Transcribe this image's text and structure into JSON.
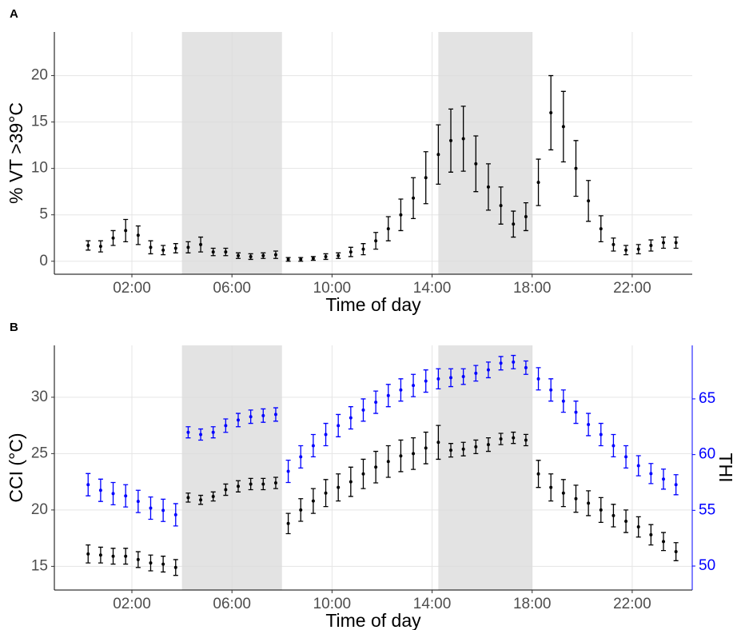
{
  "chart_data": [
    {
      "type": "scatter",
      "label": "A",
      "x_label": "Time of day",
      "y_label": "% VT >39°C",
      "xlim": [
        -1.1,
        24.4
      ],
      "ylim": [
        -1.4,
        24.7
      ],
      "xticks": [
        {
          "value": 2,
          "label": "02:00"
        },
        {
          "value": 6,
          "label": "06:00"
        },
        {
          "value": 10,
          "label": "10:00"
        },
        {
          "value": 14,
          "label": "14:00"
        },
        {
          "value": 18,
          "label": "18:00"
        },
        {
          "value": 22,
          "label": "22:00"
        }
      ],
      "yticks": [
        0,
        5,
        10,
        15,
        20
      ],
      "grid": true,
      "shaded": [
        [
          4,
          8
        ],
        [
          14.25,
          18
        ]
      ],
      "x": [
        0.25,
        0.75,
        1.25,
        1.75,
        2.25,
        2.75,
        3.25,
        3.75,
        4.25,
        4.75,
        5.25,
        5.75,
        6.25,
        6.75,
        7.25,
        7.75,
        8.25,
        8.75,
        9.25,
        9.75,
        10.25,
        10.75,
        11.25,
        11.75,
        12.25,
        12.75,
        13.25,
        13.75,
        14.25,
        14.75,
        15.25,
        15.75,
        16.25,
        16.75,
        17.25,
        17.75,
        18.25,
        18.75,
        19.25,
        19.75,
        20.25,
        20.75,
        21.25,
        21.75,
        22.25,
        22.75,
        23.25,
        23.75
      ],
      "series": [
        {
          "color": "#000000",
          "values": [
            1.7,
            1.6,
            2.5,
            3.3,
            2.8,
            1.5,
            1.2,
            1.4,
            1.5,
            1.8,
            1.0,
            1.0,
            0.6,
            0.5,
            0.6,
            0.7,
            0.2,
            0.2,
            0.3,
            0.5,
            0.6,
            1.0,
            1.3,
            2.2,
            3.5,
            5.0,
            6.8,
            9.0,
            11.5,
            13.0,
            13.2,
            10.5,
            8.0,
            6.0,
            4.0,
            4.8,
            8.5,
            16.0,
            14.5,
            10.0,
            6.5,
            3.5,
            1.8,
            1.2,
            1.3,
            1.7,
            2.0,
            2.0
          ],
          "errors": [
            0.5,
            0.6,
            0.8,
            1.2,
            1.0,
            0.7,
            0.5,
            0.5,
            0.6,
            0.8,
            0.4,
            0.4,
            0.3,
            0.3,
            0.3,
            0.4,
            0.2,
            0.2,
            0.2,
            0.3,
            0.3,
            0.5,
            0.6,
            0.9,
            1.3,
            1.7,
            2.2,
            2.8,
            3.2,
            3.4,
            3.5,
            3.0,
            2.5,
            2.0,
            1.4,
            1.5,
            2.5,
            4.0,
            3.8,
            3.0,
            2.2,
            1.4,
            0.7,
            0.5,
            0.5,
            0.6,
            0.6,
            0.6
          ]
        }
      ]
    },
    {
      "type": "scatter",
      "label": "B",
      "x_label": "Time of day",
      "y_label": "CCI (°C)",
      "y2_label": "THI",
      "y2_color": "#0000ff",
      "xlim": [
        -1.1,
        24.4
      ],
      "ylim": [
        12.9,
        34.6
      ],
      "y2lim": [
        47.85,
        69.8
      ],
      "xticks": [
        {
          "value": 2,
          "label": "02:00"
        },
        {
          "value": 6,
          "label": "06:00"
        },
        {
          "value": 10,
          "label": "10:00"
        },
        {
          "value": 14,
          "label": "14:00"
        },
        {
          "value": 18,
          "label": "18:00"
        },
        {
          "value": 22,
          "label": "22:00"
        }
      ],
      "yticks": [
        15,
        20,
        25,
        30
      ],
      "y2ticks": [
        50,
        55,
        60,
        65
      ],
      "grid": true,
      "shaded": [
        [
          4,
          8
        ],
        [
          14.25,
          18
        ]
      ],
      "x": [
        0.25,
        0.75,
        1.25,
        1.75,
        2.25,
        2.75,
        3.25,
        3.75,
        4.25,
        4.75,
        5.25,
        5.75,
        6.25,
        6.75,
        7.25,
        7.75,
        8.25,
        8.75,
        9.25,
        9.75,
        10.25,
        10.75,
        11.25,
        11.75,
        12.25,
        12.75,
        13.25,
        13.75,
        14.25,
        14.75,
        15.25,
        15.75,
        16.25,
        16.75,
        17.25,
        17.75,
        18.25,
        18.75,
        19.25,
        19.75,
        20.25,
        20.75,
        21.25,
        21.75,
        22.25,
        22.75,
        23.25,
        23.75
      ],
      "series": [
        {
          "color": "#000000",
          "values": [
            16.1,
            16.0,
            15.9,
            15.9,
            15.6,
            15.3,
            15.2,
            14.9,
            21.1,
            20.9,
            21.2,
            21.8,
            22.1,
            22.3,
            22.3,
            22.4,
            18.8,
            20.0,
            20.8,
            21.5,
            22.0,
            22.5,
            23.2,
            23.8,
            24.3,
            24.8,
            25.0,
            25.5,
            26.0,
            25.3,
            25.4,
            25.6,
            25.8,
            26.3,
            26.4,
            26.2,
            23.2,
            22.0,
            21.5,
            21.0,
            20.6,
            20.0,
            19.5,
            19.0,
            18.5,
            17.8,
            17.2,
            16.3
          ],
          "errors": [
            0.8,
            0.7,
            0.7,
            0.7,
            0.7,
            0.7,
            0.7,
            0.7,
            0.4,
            0.4,
            0.4,
            0.5,
            0.5,
            0.5,
            0.5,
            0.5,
            0.9,
            1.0,
            1.1,
            1.2,
            1.2,
            1.3,
            1.3,
            1.4,
            1.4,
            1.4,
            1.4,
            1.4,
            1.5,
            0.6,
            0.6,
            0.6,
            0.6,
            0.5,
            0.5,
            0.5,
            1.2,
            1.2,
            1.2,
            1.2,
            1.1,
            1.1,
            1.0,
            1.0,
            0.9,
            0.9,
            0.8,
            0.8
          ]
        },
        {
          "color": "#0000ff",
          "axis": "y2",
          "values": [
            57.3,
            56.8,
            56.5,
            56.3,
            55.8,
            55.2,
            55.0,
            54.6,
            62.0,
            61.8,
            62.0,
            62.6,
            63.1,
            63.4,
            63.5,
            63.6,
            58.5,
            59.8,
            60.8,
            61.8,
            62.6,
            63.3,
            64.0,
            64.7,
            65.3,
            65.8,
            66.2,
            66.6,
            66.8,
            66.9,
            67.0,
            67.3,
            67.6,
            68.2,
            68.3,
            67.8,
            66.8,
            65.8,
            64.8,
            63.8,
            62.7,
            61.8,
            60.8,
            59.8,
            59.0,
            58.3,
            57.8,
            57.3
          ],
          "errors": [
            1.0,
            1.0,
            1.0,
            1.0,
            1.0,
            1.0,
            1.0,
            1.0,
            0.5,
            0.5,
            0.5,
            0.6,
            0.6,
            0.6,
            0.6,
            0.6,
            1.0,
            1.0,
            1.0,
            1.0,
            1.0,
            1.0,
            1.0,
            1.0,
            1.0,
            1.0,
            1.0,
            1.0,
            0.9,
            0.8,
            0.7,
            0.7,
            0.7,
            0.6,
            0.6,
            0.6,
            1.0,
            1.0,
            1.0,
            1.0,
            1.0,
            1.0,
            1.0,
            1.0,
            0.9,
            0.9,
            0.9,
            0.9
          ]
        }
      ]
    }
  ]
}
